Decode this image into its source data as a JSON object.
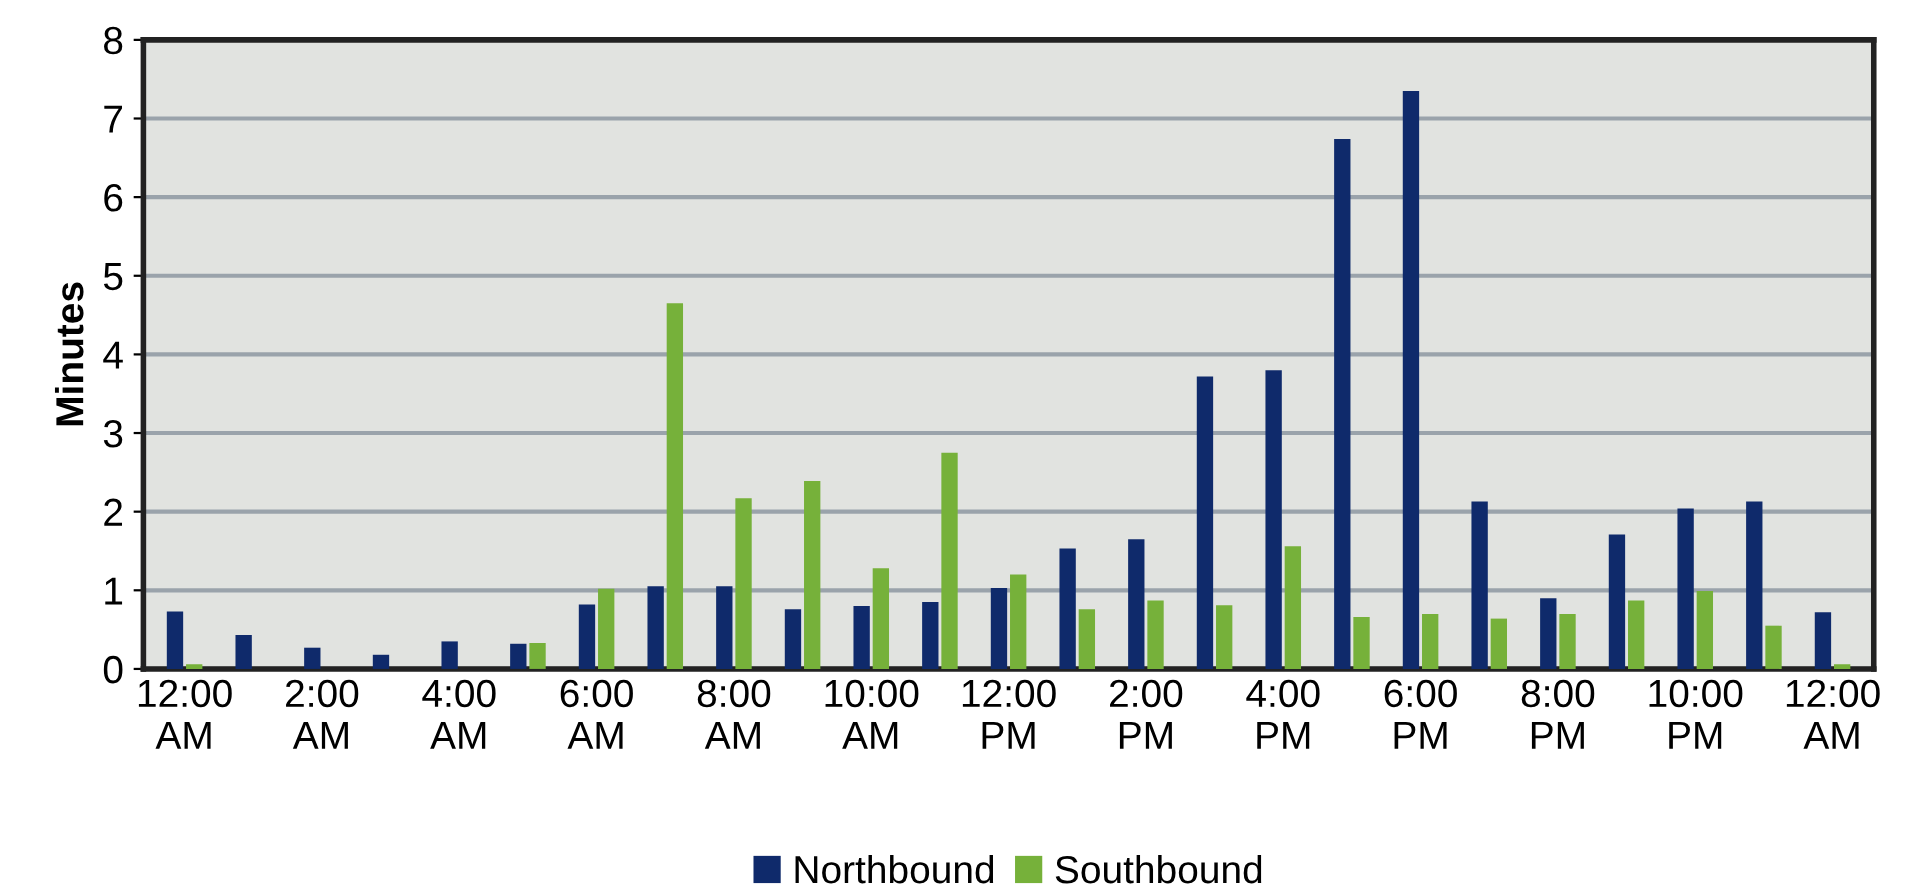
{
  "chart_data": {
    "type": "bar",
    "ylabel": "Minutes",
    "categories": [
      "12:00\nAM",
      null,
      "2:00\nAM",
      null,
      "4:00\nAM",
      null,
      "6:00\nAM",
      null,
      "8:00\nAM",
      null,
      "10:00\nAM",
      null,
      "12:00\nPM",
      null,
      "2:00\nPM",
      null,
      "4:00\nPM",
      null,
      "6:00\nPM",
      null,
      "8:00\nPM",
      null,
      "10:00\nPM",
      null,
      "12:00\nAM"
    ],
    "series": [
      {
        "name": "Northbound",
        "color": "#0f2a6b",
        "values": [
          0.73,
          0.43,
          0.27,
          0.18,
          0.35,
          0.32,
          0.82,
          1.05,
          1.05,
          0.76,
          0.8,
          0.85,
          1.03,
          1.53,
          1.65,
          3.72,
          3.8,
          6.74,
          7.35,
          2.13,
          0.9,
          1.71,
          2.04,
          2.13,
          0.72
        ]
      },
      {
        "name": "Southbound",
        "color": "#76b13a",
        "values": [
          0.06,
          0,
          0,
          0,
          0,
          0.33,
          1.02,
          4.65,
          2.17,
          2.39,
          1.28,
          2.75,
          1.2,
          0.76,
          0.87,
          0.81,
          1.56,
          0.66,
          0.7,
          0.64,
          0.7,
          0.87,
          0.99,
          0.55,
          0.06
        ]
      }
    ],
    "ylim": [
      0,
      8
    ],
    "yticks": [
      0,
      1,
      2,
      3,
      4,
      5,
      6,
      7,
      8
    ],
    "grid": "y",
    "legend": "bottom"
  }
}
